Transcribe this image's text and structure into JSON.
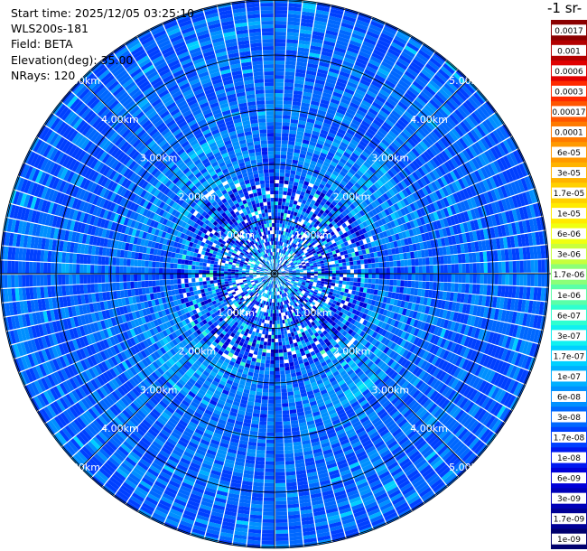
{
  "header": {
    "start_time": "Start time: 2025/12/05 03:25:10",
    "instrument": "WLS200s-181",
    "field": "Field: BETA",
    "elevation": "Elevation(deg): 35.00",
    "nrays": "NRays: 120"
  },
  "colorbar": {
    "title": "-1 sr-",
    "labels": [
      "0.0017",
      "0.001",
      "0.0006",
      "0.0003",
      "0.00017",
      "0.0001",
      "6e-05",
      "3e-05",
      "1.7e-05",
      "1e-05",
      "6e-06",
      "3e-06",
      "1.7e-06",
      "1e-06",
      "6e-07",
      "3e-07",
      "1.7e-07",
      "1e-07",
      "6e-08",
      "3e-08",
      "1.7e-08",
      "1e-08",
      "6e-09",
      "3e-09",
      "1.7e-09",
      "1e-09"
    ],
    "colors": [
      "#8b0000",
      "#b30000",
      "#e00000",
      "#ff2a00",
      "#ff5500",
      "#ff7a00",
      "#ff9900",
      "#ffb300",
      "#ffd000",
      "#ffea00",
      "#f0ff10",
      "#c8ff3c",
      "#8cff78",
      "#5affa8",
      "#2effd0",
      "#10f0f0",
      "#00d0ff",
      "#00b0ff",
      "#0090ff",
      "#0068ff",
      "#0040ff",
      "#0018f0",
      "#0000d8",
      "#0000b8",
      "#000096",
      "#00006e"
    ]
  },
  "chart_data": {
    "type": "heatmap",
    "projection": "polar-ppi",
    "rays": 120,
    "range_max_km": 5.5,
    "range_rings_km": [
      1,
      2,
      3,
      4,
      5
    ],
    "ring_labels": [
      "1.00km",
      "2.00km",
      "3.00km",
      "4.00km",
      "5.00km"
    ],
    "spokes": 8
  }
}
